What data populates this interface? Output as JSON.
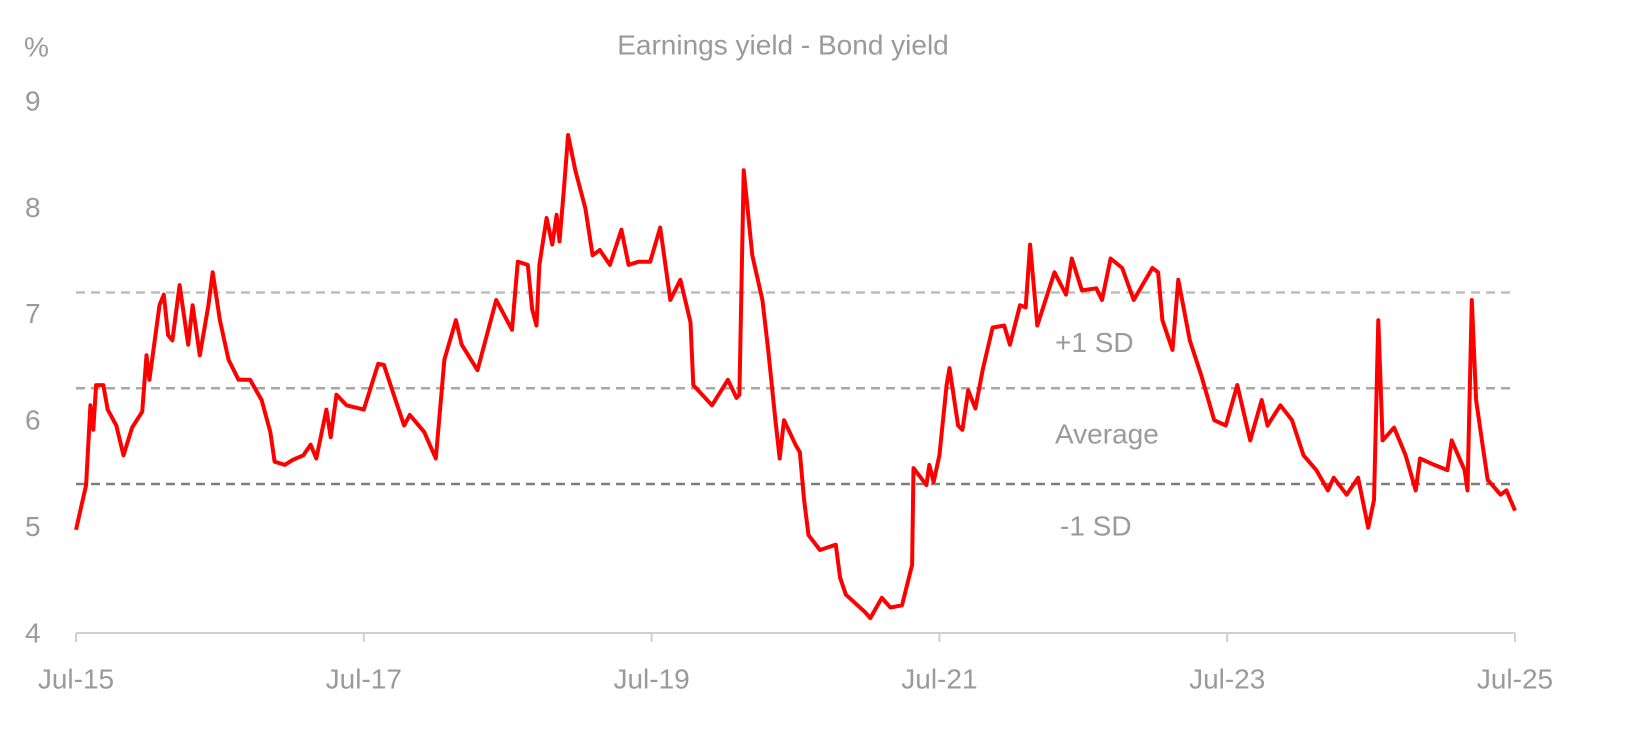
{
  "chart_data": {
    "type": "line",
    "title": "Earnings yield - Bond yield",
    "y_unit": "%",
    "ylim": [
      4,
      9
    ],
    "yticks": [
      4,
      5,
      6,
      7,
      8,
      9
    ],
    "xlim": [
      2015.5,
      2025.5
    ],
    "xticks": [
      {
        "value": 2015.5,
        "label": "Jul-15"
      },
      {
        "value": 2017.5,
        "label": "Jul-17"
      },
      {
        "value": 2019.5,
        "label": "Jul-19"
      },
      {
        "value": 2021.5,
        "label": "Jul-21"
      },
      {
        "value": 2023.5,
        "label": "Jul-23"
      },
      {
        "value": 2025.5,
        "label": "Jul-25"
      }
    ],
    "reference_lines": [
      {
        "value": 7.2,
        "label": "+1 SD",
        "color": "#bdbdbd"
      },
      {
        "value": 6.3,
        "label": "Average",
        "color": "#a8a8a8"
      },
      {
        "value": 5.4,
        "label": "-1 SD",
        "color": "#7f7f7f"
      }
    ],
    "series": [
      {
        "name": "Earnings yield - Bond yield",
        "color": "#ff0000",
        "x": [
          2015.5,
          2015.57,
          2015.6,
          2015.62,
          2015.64,
          2015.69,
          2015.72,
          2015.78,
          2015.83,
          2015.89,
          2015.96,
          2015.99,
          2016.01,
          2016.08,
          2016.11,
          2016.14,
          2016.17,
          2016.22,
          2016.28,
          2016.31,
          2016.36,
          2016.42,
          2016.45,
          2016.5,
          2016.56,
          2016.63,
          2016.71,
          2016.79,
          2016.85,
          2016.88,
          2016.95,
          2017.01,
          2017.08,
          2017.13,
          2017.17,
          2017.24,
          2017.27,
          2017.31,
          2017.38,
          2017.5,
          2017.6,
          2017.64,
          2017.72,
          2017.78,
          2017.82,
          2017.92,
          2018.0,
          2018.06,
          2018.14,
          2018.18,
          2018.29,
          2018.42,
          2018.53,
          2018.57,
          2018.64,
          2018.67,
          2018.7,
          2018.72,
          2018.77,
          2018.81,
          2018.84,
          2018.86,
          2018.89,
          2018.92,
          2018.97,
          2019.04,
          2019.09,
          2019.14,
          2019.21,
          2019.29,
          2019.34,
          2019.41,
          2019.49,
          2019.56,
          2019.63,
          2019.7,
          2019.77,
          2019.79,
          2019.92,
          2020.03,
          2020.09,
          2020.11,
          2020.14,
          2020.2,
          2020.27,
          2020.31,
          2020.36,
          2020.39,
          2020.42,
          2020.5,
          2020.53,
          2020.56,
          2020.59,
          2020.67,
          2020.78,
          2020.81,
          2020.85,
          2020.98,
          2021.02,
          2021.1,
          2021.16,
          2021.24,
          2021.31,
          2021.32,
          2021.41,
          2021.43,
          2021.46,
          2021.5,
          2021.55,
          2021.57,
          2021.63,
          2021.66,
          2021.7,
          2021.75,
          2021.8,
          2021.87,
          2021.95,
          2021.99,
          2022.06,
          2022.1,
          2022.13,
          2022.18,
          2022.3,
          2022.38,
          2022.42,
          2022.49,
          2022.59,
          2022.63,
          2022.69,
          2022.77,
          2022.85,
          2022.98,
          2023.02,
          2023.05,
          2023.12,
          2023.16,
          2023.24,
          2023.32,
          2023.41,
          2023.49,
          2023.57,
          2023.66,
          2023.74,
          2023.78,
          2023.87,
          2023.95,
          2024.03,
          2024.12,
          2024.2,
          2024.24,
          2024.33,
          2024.41,
          2024.48,
          2024.52,
          2024.55,
          2024.58,
          2024.66,
          2024.74,
          2024.81,
          2024.84,
          2024.94,
          2025.03,
          2025.06,
          2025.15,
          2025.17,
          2025.2,
          2025.23,
          2025.27,
          2025.31,
          2025.4,
          2025.44,
          2025.5
        ],
        "values": [
          4.97,
          5.39,
          6.14,
          5.91,
          6.33,
          6.33,
          6.1,
          5.95,
          5.67,
          5.93,
          6.08,
          6.61,
          6.38,
          7.08,
          7.18,
          6.8,
          6.75,
          7.27,
          6.71,
          7.08,
          6.61,
          7.08,
          7.39,
          6.94,
          6.57,
          6.38,
          6.38,
          6.19,
          5.89,
          5.61,
          5.58,
          5.63,
          5.67,
          5.77,
          5.64,
          6.1,
          5.84,
          6.24,
          6.14,
          6.1,
          6.53,
          6.52,
          6.19,
          5.95,
          6.05,
          5.89,
          5.64,
          6.57,
          6.94,
          6.71,
          6.47,
          7.13,
          6.85,
          7.49,
          7.46,
          7.04,
          6.89,
          7.46,
          7.9,
          7.65,
          7.93,
          7.68,
          8.16,
          8.68,
          8.35,
          7.99,
          7.55,
          7.6,
          7.46,
          7.79,
          7.46,
          7.49,
          7.49,
          7.81,
          7.13,
          7.32,
          6.92,
          6.33,
          6.14,
          6.38,
          6.21,
          6.24,
          8.35,
          7.55,
          7.13,
          6.66,
          6.0,
          5.64,
          6.0,
          5.77,
          5.7,
          5.25,
          4.92,
          4.78,
          4.83,
          4.52,
          4.36,
          4.2,
          4.14,
          4.33,
          4.24,
          4.26,
          4.64,
          5.55,
          5.39,
          5.58,
          5.42,
          5.67,
          6.33,
          6.49,
          5.95,
          5.91,
          6.28,
          6.11,
          6.47,
          6.87,
          6.89,
          6.71,
          7.08,
          7.06,
          7.65,
          6.89,
          7.39,
          7.18,
          7.52,
          7.22,
          7.24,
          7.13,
          7.52,
          7.43,
          7.13,
          7.43,
          7.39,
          6.94,
          6.66,
          7.32,
          6.75,
          6.42,
          6.0,
          5.95,
          6.33,
          5.81,
          6.19,
          5.95,
          6.14,
          6.0,
          5.67,
          5.53,
          5.34,
          5.46,
          5.3,
          5.46,
          4.99,
          5.25,
          6.94,
          5.81,
          5.93,
          5.67,
          5.34,
          5.64,
          5.58,
          5.53,
          5.81,
          5.53,
          5.34,
          7.13,
          6.19,
          5.81,
          5.44,
          5.3,
          5.34,
          5.15
        ]
      }
    ]
  }
}
